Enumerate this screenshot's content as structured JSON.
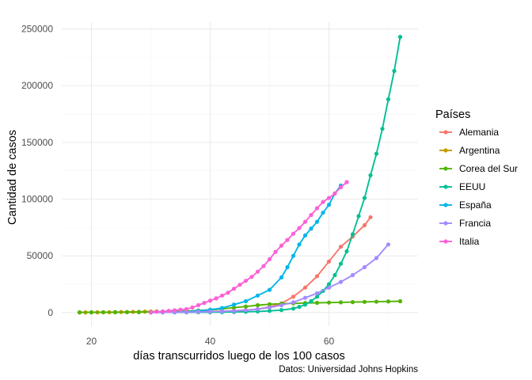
{
  "chart_data": {
    "type": "line",
    "title": "",
    "xlabel": "días transcurridos luego de los 100 casos",
    "ylabel": "Cantidad de casos",
    "caption": "Datos: Universidad Johns Hopkins",
    "xlim": [
      15,
      75
    ],
    "ylim": [
      -12000,
      256000
    ],
    "x_ticks": [
      20,
      40,
      60
    ],
    "x_tick_labels": [
      "20",
      "40",
      "60"
    ],
    "y_ticks": [
      0,
      50000,
      100000,
      150000,
      200000,
      250000
    ],
    "y_tick_labels": [
      "0",
      "50000",
      "100000",
      "150000",
      "200000",
      "250000"
    ],
    "grid": true,
    "legend": {
      "title": "Países",
      "position": "right"
    },
    "series": [
      {
        "name": "Alemania",
        "color": "#F8766D",
        "x": [
          18,
          20,
          22,
          24,
          26,
          28,
          30,
          32,
          34,
          36,
          38,
          40,
          42,
          44,
          46,
          48,
          50,
          52,
          54,
          56,
          58,
          60,
          62,
          64,
          66,
          67
        ],
        "y": [
          150,
          200,
          250,
          300,
          350,
          400,
          450,
          500,
          600,
          700,
          800,
          900,
          1200,
          1600,
          2200,
          3000,
          5000,
          8000,
          14000,
          22000,
          32000,
          45000,
          58000,
          67000,
          77000,
          84000
        ]
      },
      {
        "name": "Argentina",
        "color": "#C49A00",
        "x": [
          18,
          19,
          20,
          21,
          22,
          23,
          24,
          25,
          26,
          27,
          28,
          29,
          30,
          31
        ],
        "y": [
          100,
          130,
          160,
          200,
          250,
          300,
          380,
          450,
          500,
          590,
          690,
          820,
          970,
          1050
        ]
      },
      {
        "name": "Corea del Sur",
        "color": "#53B400",
        "x": [
          18,
          20,
          22,
          24,
          26,
          28,
          30,
          32,
          34,
          36,
          38,
          40,
          42,
          44,
          46,
          48,
          50,
          52,
          54,
          56,
          58,
          60,
          62,
          64,
          66,
          68,
          70,
          72
        ],
        "y": [
          150,
          200,
          250,
          300,
          350,
          400,
          500,
          700,
          900,
          1300,
          1800,
          2400,
          3200,
          4300,
          5300,
          6500,
          7300,
          7800,
          8100,
          8400,
          8600,
          8800,
          9000,
          9200,
          9400,
          9600,
          9800,
          10000
        ]
      },
      {
        "name": "EEUU",
        "color": "#00C094",
        "x": [
          30,
          32,
          34,
          36,
          38,
          40,
          42,
          44,
          46,
          48,
          50,
          52,
          54,
          55,
          56,
          57,
          58,
          59,
          60,
          61,
          62,
          63,
          64,
          65,
          66,
          67,
          68,
          69,
          70,
          71,
          72
        ],
        "y": [
          100,
          120,
          150,
          200,
          250,
          300,
          400,
          500,
          700,
          1000,
          1500,
          2200,
          3500,
          5000,
          7000,
          10000,
          14000,
          19000,
          25000,
          33000,
          43000,
          54000,
          69000,
          85000,
          101000,
          121000,
          140000,
          162000,
          188000,
          213000,
          243000
        ]
      },
      {
        "name": "España",
        "color": "#00B6EB",
        "x": [
          30,
          32,
          34,
          36,
          38,
          40,
          42,
          44,
          46,
          48,
          50,
          52,
          53,
          54,
          55,
          56,
          57,
          58,
          59,
          60,
          61,
          62
        ],
        "y": [
          100,
          200,
          400,
          800,
          1500,
          2500,
          4000,
          7000,
          10000,
          15000,
          20000,
          31000,
          40000,
          50000,
          60000,
          68000,
          74000,
          80000,
          88000,
          95000,
          105000,
          112000
        ]
      },
      {
        "name": "Francia",
        "color": "#A58AFF",
        "x": [
          30,
          32,
          34,
          36,
          38,
          40,
          42,
          44,
          46,
          48,
          50,
          52,
          54,
          56,
          58,
          60,
          62,
          64,
          66,
          68,
          70
        ],
        "y": [
          100,
          200,
          300,
          400,
          600,
          800,
          1100,
          1400,
          2000,
          3000,
          4500,
          6500,
          9000,
          13000,
          17000,
          22000,
          27000,
          33000,
          40000,
          48000,
          60000
        ]
      },
      {
        "name": "Italia",
        "color": "#FB61D7",
        "x": [
          30,
          31,
          32,
          33,
          34,
          35,
          36,
          37,
          38,
          39,
          40,
          41,
          42,
          43,
          44,
          45,
          46,
          47,
          48,
          49,
          50,
          51,
          52,
          53,
          54,
          55,
          56,
          57,
          58,
          59,
          60,
          61,
          62,
          63
        ],
        "y": [
          400,
          700,
          1000,
          1500,
          2000,
          2500,
          3000,
          4500,
          6500,
          8500,
          10500,
          12500,
          15000,
          17500,
          21000,
          24500,
          28000,
          31500,
          36000,
          41000,
          47000,
          53500,
          59000,
          64000,
          69500,
          74500,
          80000,
          86000,
          92000,
          97500,
          101000,
          105000,
          110500,
          115000
        ]
      }
    ]
  }
}
